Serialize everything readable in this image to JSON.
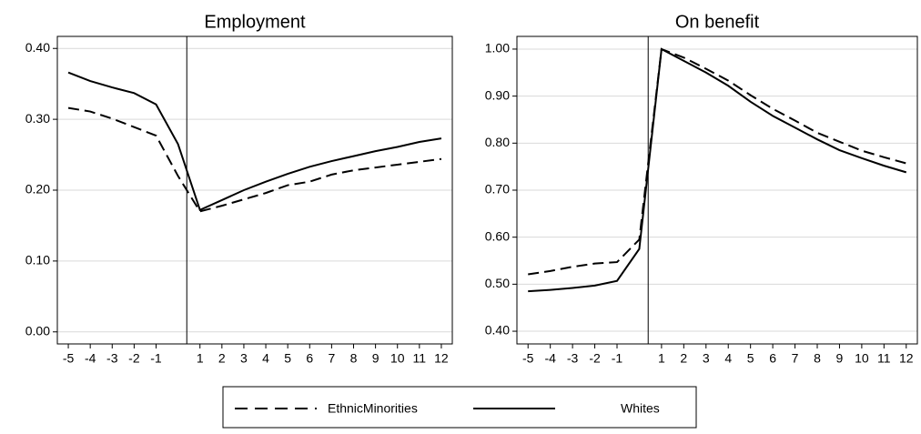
{
  "chart_data": [
    {
      "type": "line",
      "title": "Employment",
      "x": [
        -5,
        -4,
        -3,
        -2,
        -1,
        0,
        1,
        2,
        3,
        4,
        5,
        6,
        7,
        8,
        9,
        10,
        11,
        12
      ],
      "series": [
        {
          "name": "EthnicMinorities",
          "color": "#000000",
          "line_style": "dashed",
          "values": [
            0.316,
            0.311,
            0.301,
            0.289,
            0.277,
            0.22,
            0.17,
            0.178,
            0.187,
            0.196,
            0.207,
            0.212,
            0.222,
            0.228,
            0.232,
            0.236,
            0.24,
            0.244
          ]
        },
        {
          "name": "Whites",
          "color": "#000000",
          "line_style": "solid",
          "values": [
            0.366,
            0.354,
            0.345,
            0.337,
            0.321,
            0.265,
            0.172,
            0.186,
            0.2,
            0.212,
            0.223,
            0.233,
            0.241,
            0.248,
            0.255,
            0.261,
            0.268,
            0.273
          ]
        }
      ],
      "xlim": [
        -5.5,
        12.5
      ],
      "xticks": [
        -5,
        -4,
        -3,
        -2,
        -1,
        1,
        2,
        3,
        4,
        5,
        6,
        7,
        8,
        9,
        10,
        11,
        12
      ],
      "ylim": [
        -0.017,
        0.417
      ],
      "yticks": [
        {
          "value": 0,
          "label": "0.00"
        },
        {
          "value": 0.1,
          "label": "0.10"
        },
        {
          "value": 0.2,
          "label": "0.20"
        },
        {
          "value": 0.3,
          "label": "0.30"
        },
        {
          "value": 0.4,
          "label": "0.40"
        }
      ],
      "grid": true,
      "vline": 0.4
    },
    {
      "type": "line",
      "title": "On benefit",
      "x": [
        -5,
        -4,
        -3,
        -2,
        -1,
        0,
        1,
        2,
        3,
        4,
        5,
        6,
        7,
        8,
        9,
        10,
        11,
        12
      ],
      "series": [
        {
          "name": "EthnicMinorities",
          "color": "#000000",
          "line_style": "dashed",
          "values": [
            0.521,
            0.528,
            0.537,
            0.544,
            0.547,
            0.595,
            1.0,
            0.982,
            0.958,
            0.933,
            0.902,
            0.873,
            0.848,
            0.822,
            0.803,
            0.784,
            0.77,
            0.757
          ]
        },
        {
          "name": "Whites",
          "color": "#000000",
          "line_style": "solid",
          "values": [
            0.485,
            0.488,
            0.492,
            0.497,
            0.507,
            0.575,
            1.0,
            0.975,
            0.95,
            0.922,
            0.888,
            0.858,
            0.833,
            0.808,
            0.785,
            0.768,
            0.752,
            0.738
          ]
        }
      ],
      "xlim": [
        -5.5,
        12.5
      ],
      "xticks": [
        -5,
        -4,
        -3,
        -2,
        -1,
        1,
        2,
        3,
        4,
        5,
        6,
        7,
        8,
        9,
        10,
        11,
        12
      ],
      "ylim": [
        0.373,
        1.027
      ],
      "yticks": [
        {
          "value": 0.4,
          "label": "0.40"
        },
        {
          "value": 0.5,
          "label": "0.50"
        },
        {
          "value": 0.6,
          "label": "0.60"
        },
        {
          "value": 0.7,
          "label": "0.70"
        },
        {
          "value": 0.8,
          "label": "0.80"
        },
        {
          "value": 0.9,
          "label": "0.90"
        },
        {
          "value": 1.0,
          "label": "1.00"
        }
      ],
      "grid": true,
      "vline": 0.4
    }
  ]
}
